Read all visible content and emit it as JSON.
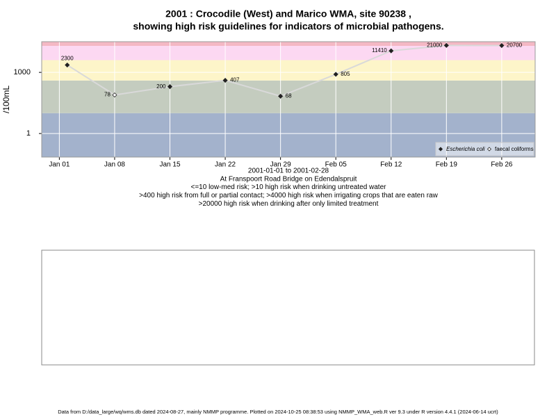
{
  "chart_data": {
    "type": "line",
    "title": "2001 : Crocodile (West) and Marico WMA, site 90238 ,",
    "subtitle": "showing high risk guidelines for indicators of microbial pathogens.",
    "ylabel": "/100mL",
    "notes": [
      "2001-01-01 to 2001-02-28",
      "At Franspoort Road Bridge on Edendalspruit",
      "<=10 low-med risk; >10 high risk when drinking untreated water",
      ">400 high risk from full or partial contact; >4000 high risk when irrigating crops that are eaten raw",
      ">20000 high risk when drinking after only limited treatment"
    ],
    "log_y": true,
    "grid": true,
    "legend": "bottom-right",
    "line_color": "#d9d9d9",
    "xlim": [
      "2001-01-01",
      "2001-02-28"
    ],
    "xticks": [
      {
        "value": "2001-01-01",
        "label": "Jan 01"
      },
      {
        "value": "2001-01-08",
        "label": "Jan 08"
      },
      {
        "value": "2001-01-15",
        "label": "Jan 15"
      },
      {
        "value": "2001-01-22",
        "label": "Jan 22"
      },
      {
        "value": "2001-01-29",
        "label": "Jan 29"
      },
      {
        "value": "2001-02-05",
        "label": "Feb 05"
      },
      {
        "value": "2001-02-12",
        "label": "Feb 12"
      },
      {
        "value": "2001-02-19",
        "label": "Feb 19"
      },
      {
        "value": "2001-02-26",
        "label": "Feb 26"
      }
    ],
    "ylim": [
      0.07,
      32000
    ],
    "yticks": [
      1,
      1000
    ],
    "bands": [
      {
        "from": 0.07,
        "to": 10,
        "color": "#a3b2cc"
      },
      {
        "from": 10,
        "to": 400,
        "color": "#c4ccbf"
      },
      {
        "from": 400,
        "to": 4000,
        "color": "#fdf5c9"
      },
      {
        "from": 4000,
        "to": 20000,
        "color": "#fcd8f2"
      },
      {
        "from": 20000,
        "to": 32000,
        "color": "#f4b8c4"
      }
    ],
    "series": [
      {
        "name": "Escherichia coli",
        "color": "#222222",
        "marker": "filled",
        "x": [
          "2001-01-02",
          "2001-01-15",
          "2001-01-22",
          "2001-01-29",
          "2001-02-05",
          "2001-02-12",
          "2001-02-19",
          "2001-02-26"
        ],
        "values": [
          2300,
          200,
          407,
          68,
          805,
          11410,
          21000,
          20700
        ]
      },
      {
        "name": "faecal coliforms",
        "color": "#222222",
        "marker": "open",
        "x": [
          "2001-01-08"
        ],
        "values": [
          78
        ]
      }
    ]
  },
  "footer": "Data from D:/data_large/wq/wms.db dated 2024-08-27, mainly NMMP programme. Plotted on 2024-10-25 08:38:53 using NMMP_WMA_web.R ver 9.3 under R version 4.4.1 (2024-06-14 ucrt)"
}
